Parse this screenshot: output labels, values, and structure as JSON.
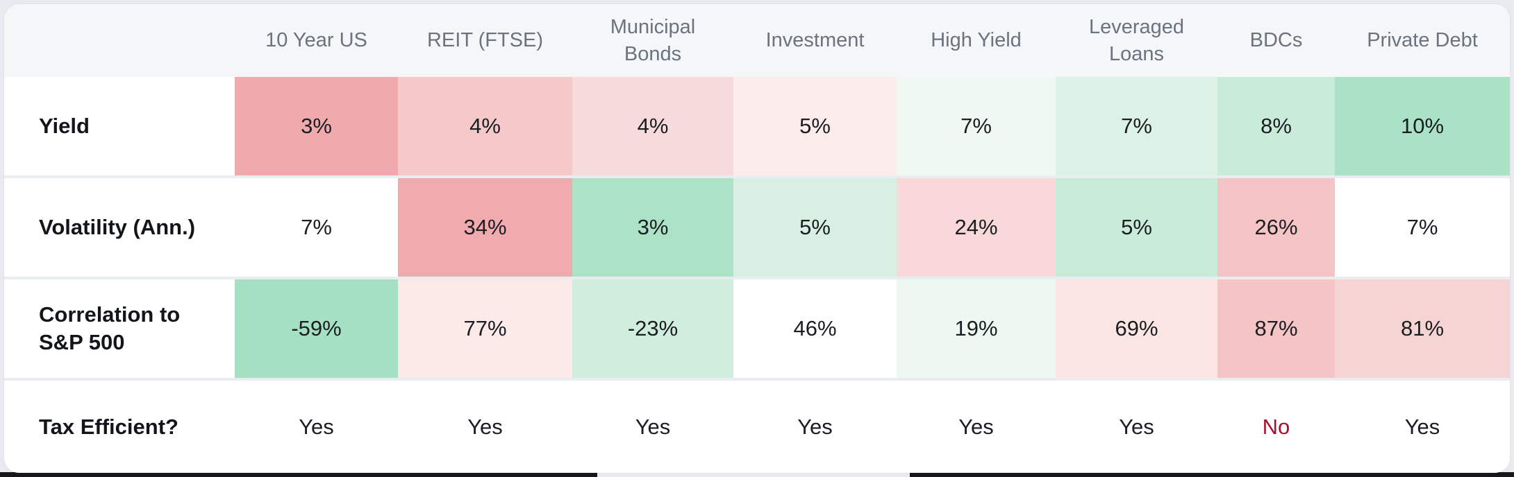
{
  "table": {
    "columns": [
      "10 Year US",
      "REIT (FTSE)",
      "Municipal Bonds",
      "Investment",
      "High Yield",
      "Leveraged Loans",
      "BDCs",
      "Private Debt"
    ],
    "rows": [
      {
        "label": "Yield",
        "values": [
          "3%",
          "4%",
          "4%",
          "5%",
          "7%",
          "7%",
          "8%",
          "10%"
        ],
        "colors": [
          "#F0A9AC",
          "#F5C8CA",
          "#F7DBDC",
          "#FBEBEB",
          "#EFF8F3",
          "#DDF2E7",
          "#C9EBDA",
          "#A9E2C5"
        ],
        "text_colors": [
          "#1A1D21",
          "#1A1D21",
          "#1A1D21",
          "#1A1D21",
          "#1A1D21",
          "#1A1D21",
          "#1A1D21",
          "#1A1D21"
        ]
      },
      {
        "label": "Volatility (Ann.)",
        "values": [
          "7%",
          "34%",
          "3%",
          "5%",
          "24%",
          "5%",
          "26%",
          "7%"
        ],
        "colors": [
          "#FFFFFF",
          "#F1AAAD",
          "#ACE3C6",
          "#D8F0E3",
          "#F8D8D9",
          "#C9EBDA",
          "#F5C5C6",
          "#FFFFFF"
        ],
        "text_colors": [
          "#1A1D21",
          "#1A1D21",
          "#1A1D21",
          "#1A1D21",
          "#1A1D21",
          "#1A1D21",
          "#1A1D21",
          "#1A1D21"
        ]
      },
      {
        "label": "Correlation to S&P 500",
        "values": [
          "-59%",
          "77%",
          "-23%",
          "46%",
          "19%",
          "69%",
          "87%",
          "81%"
        ],
        "colors": [
          "#A5E0C3",
          "#FCEAE9",
          "#D0EDDE",
          "#FFFFFF",
          "#EDF8F2",
          "#FBE6E4",
          "#F4C5C4",
          "#F6D4D3"
        ],
        "text_colors": [
          "#1A1D21",
          "#1A1D21",
          "#1A1D21",
          "#1A1D21",
          "#1A1D21",
          "#1A1D21",
          "#1A1D21",
          "#1A1D21"
        ]
      },
      {
        "label": "Tax Efficient?",
        "values": [
          "Yes",
          "Yes",
          "Yes",
          "Yes",
          "Yes",
          "Yes",
          "No",
          "Yes"
        ],
        "colors": [
          "#FFFFFF",
          "#FFFFFF",
          "#FFFFFF",
          "#FFFFFF",
          "#FFFFFF",
          "#FFFFFF",
          "#FFFFFF",
          "#FFFFFF"
        ],
        "text_colors": [
          "#1A1D21",
          "#1A1D21",
          "#1A1D21",
          "#1A1D21",
          "#1A1D21",
          "#1A1D21",
          "#A8112D",
          "#1A1D21"
        ]
      }
    ]
  },
  "colors": {
    "card_background": "#FFFFFF",
    "header_background": "#F5F6F8",
    "header_text": "#6B7280",
    "label_text": "#131619",
    "value_text": "#1A1D21",
    "negative_text": "#A8112D",
    "row_separator": "#E9ECF0",
    "page_background": "#E9EAEF",
    "bottom_strip": "#17171B",
    "heat_red_strong": "#F0A9AC",
    "heat_green_strong": "#A5E0C3"
  }
}
